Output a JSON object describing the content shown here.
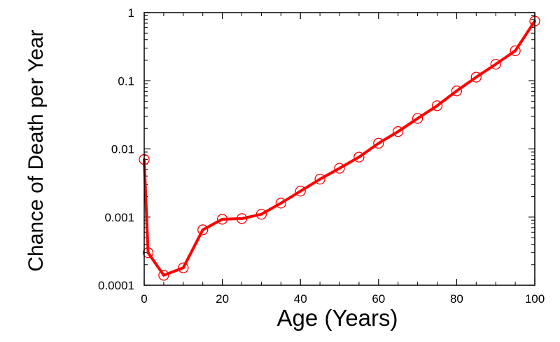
{
  "chart_data": {
    "type": "line",
    "title": "",
    "xlabel": "Age (Years)",
    "ylabel": "Chance of Death per Year",
    "xlim": [
      0,
      100
    ],
    "ylim": [
      0.0001,
      1
    ],
    "yscale": "log",
    "grid": false,
    "x_ticks": [
      0,
      20,
      40,
      60,
      80,
      100
    ],
    "x_tick_labels": [
      "0",
      "20",
      "40",
      "60",
      "80",
      "100"
    ],
    "y_ticks": [
      0.0001,
      0.001,
      0.01,
      0.1,
      1
    ],
    "y_tick_labels": [
      "0.0001",
      "0.001",
      "0.01",
      "0.1",
      "1"
    ],
    "series": [
      {
        "color": "#ff0000",
        "marker": "open-circle",
        "x": [
          0,
          1,
          5,
          10,
          15,
          20,
          25,
          30,
          35,
          40,
          45,
          50,
          55,
          60,
          65,
          70,
          75,
          80,
          85,
          90,
          95,
          100
        ],
        "y": [
          0.007,
          0.0003,
          0.00014,
          0.00018,
          0.00065,
          0.00093,
          0.00095,
          0.0011,
          0.0016,
          0.0024,
          0.0036,
          0.0052,
          0.0076,
          0.0121,
          0.018,
          0.028,
          0.043,
          0.071,
          0.113,
          0.175,
          0.275,
          0.75
        ]
      }
    ]
  }
}
